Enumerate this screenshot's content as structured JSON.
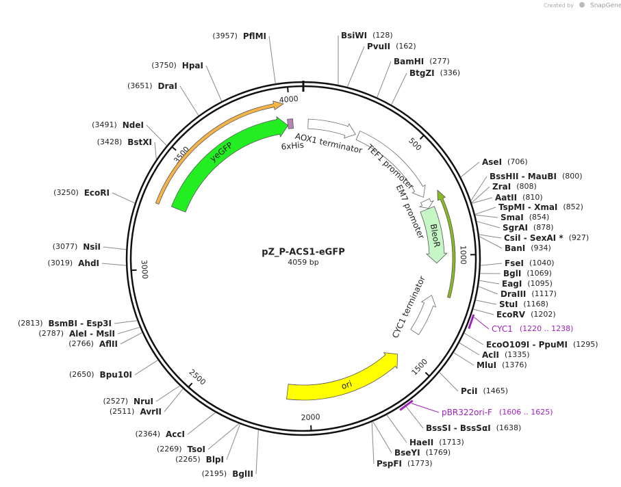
{
  "map": {
    "name": "pZ_P-ACS1-eGFP",
    "length": {
      "value": 4059,
      "label": "4059 bp"
    },
    "ticks": [
      500,
      1000,
      1500,
      2000,
      2500,
      3000,
      3500,
      4000
    ],
    "enzymes": [
      {
        "name": "BsiWI",
        "position": {
          "value": 128,
          "label": "(128)"
        }
      },
      {
        "name": "PvuII",
        "position": {
          "value": 162,
          "label": "(162)"
        }
      },
      {
        "name": "BamHI",
        "position": {
          "value": 277,
          "label": "(277)"
        }
      },
      {
        "name": "BtgZI",
        "position": {
          "value": 336,
          "label": "(336)"
        }
      },
      {
        "name": "AseI",
        "position": {
          "value": 706,
          "label": "(706)"
        }
      },
      {
        "name": "BssHII - MauBI",
        "position": {
          "value": 800,
          "label": "(800)"
        }
      },
      {
        "name": "ZraI",
        "position": {
          "value": 808,
          "label": "(808)"
        }
      },
      {
        "name": "AatII",
        "position": {
          "value": 810,
          "label": "(810)"
        }
      },
      {
        "name": "TspMI - XmaI",
        "position": {
          "value": 852,
          "label": "(852)"
        }
      },
      {
        "name": "SmaI",
        "position": {
          "value": 854,
          "label": "(854)"
        }
      },
      {
        "name": "SgrAI",
        "position": {
          "value": 878,
          "label": "(878)"
        }
      },
      {
        "name": "CsiI - SexAI *",
        "position": {
          "value": 927,
          "label": "(927)"
        }
      },
      {
        "name": "BanI",
        "position": {
          "value": 934,
          "label": "(934)"
        }
      },
      {
        "name": "FseI",
        "position": {
          "value": 1040,
          "label": "(1040)"
        }
      },
      {
        "name": "BglI",
        "position": {
          "value": 1069,
          "label": "(1069)"
        }
      },
      {
        "name": "EagI",
        "position": {
          "value": 1095,
          "label": "(1095)"
        }
      },
      {
        "name": "DraIII",
        "position": {
          "value": 1117,
          "label": "(1117)"
        }
      },
      {
        "name": "StuI",
        "position": {
          "value": 1168,
          "label": "(1168)"
        }
      },
      {
        "name": "EcoRV",
        "position": {
          "value": 1202,
          "label": "(1202)"
        }
      },
      {
        "name": "EcoO109I - PpuMI",
        "position": {
          "value": 1295,
          "label": "(1295)"
        }
      },
      {
        "name": "AclI",
        "position": {
          "value": 1335,
          "label": "(1335)"
        }
      },
      {
        "name": "MluI",
        "position": {
          "value": 1376,
          "label": "(1376)"
        }
      },
      {
        "name": "PciI",
        "position": {
          "value": 1465,
          "label": "(1465)"
        }
      },
      {
        "name": "BssSI - BssSαI",
        "position": {
          "value": 1638,
          "label": "(1638)"
        }
      },
      {
        "name": "HaeII",
        "position": {
          "value": 1713,
          "label": "(1713)"
        }
      },
      {
        "name": "BseYI",
        "position": {
          "value": 1769,
          "label": "(1769)"
        }
      },
      {
        "name": "PspFI",
        "position": {
          "value": 1773,
          "label": "(1773)"
        }
      },
      {
        "name": "BglII",
        "position": {
          "value": 2195,
          "label": "(2195)"
        }
      },
      {
        "name": "BlpI",
        "position": {
          "value": 2265,
          "label": "(2265)"
        }
      },
      {
        "name": "TsoI",
        "position": {
          "value": 2269,
          "label": "(2269)"
        }
      },
      {
        "name": "AccI",
        "position": {
          "value": 2364,
          "label": "(2364)"
        }
      },
      {
        "name": "AvrII",
        "position": {
          "value": 2511,
          "label": "(2511)"
        }
      },
      {
        "name": "NruI",
        "position": {
          "value": 2527,
          "label": "(2527)"
        }
      },
      {
        "name": "Bpu10I",
        "position": {
          "value": 2650,
          "label": "(2650)"
        }
      },
      {
        "name": "AflII",
        "position": {
          "value": 2766,
          "label": "(2766)"
        }
      },
      {
        "name": "AleI - MslI",
        "position": {
          "value": 2787,
          "label": "(2787)"
        }
      },
      {
        "name": "BsmBI - Esp3I",
        "position": {
          "value": 2813,
          "label": "(2813)"
        }
      },
      {
        "name": "AhdI",
        "position": {
          "value": 3019,
          "label": "(3019)"
        }
      },
      {
        "name": "NsiI",
        "position": {
          "value": 3077,
          "label": "(3077)"
        }
      },
      {
        "name": "EcoRI",
        "position": {
          "value": 3250,
          "label": "(3250)"
        }
      },
      {
        "name": "BstXI",
        "position": {
          "value": 3428,
          "label": "(3428)"
        }
      },
      {
        "name": "NdeI",
        "position": {
          "value": 3491,
          "label": "(3491)"
        }
      },
      {
        "name": "DraI",
        "position": {
          "value": 3651,
          "label": "(3651)"
        }
      },
      {
        "name": "HpaI",
        "position": {
          "value": 3750,
          "label": "(3750)"
        }
      },
      {
        "name": "PflMI",
        "position": {
          "value": 3957,
          "label": "(3957)"
        }
      }
    ],
    "features": [
      {
        "start": 3277,
        "end": 3976,
        "direction": 1,
        "color": "#f5b449"
      },
      {
        "name": "yeGFP",
        "start": 3287,
        "end": 3985,
        "direction": 1,
        "color": "#22ee22"
      },
      {
        "name": "6xHis",
        "start": 3985,
        "end": 4010,
        "direction": 0,
        "color": "#b585b5"
      },
      {
        "name": "AOX1 terminator",
        "start": 23,
        "end": 257,
        "direction": 1,
        "color": "#ffffff"
      },
      {
        "name": "TEF1 promoter",
        "start": 270,
        "end": 710,
        "direction": 1,
        "color": "#ffffff"
      },
      {
        "name": "EM7 promoter",
        "start": 728,
        "end": 768,
        "direction": 1,
        "color": "#ffffff"
      },
      {
        "name": "BleoR",
        "start": 770,
        "end": 1037,
        "direction": 1,
        "color": "#c6f5c6"
      },
      {
        "start": 710,
        "end": 1184,
        "direction": -1,
        "color": "#88bb22"
      },
      {
        "name": "CYC1 terminator",
        "start": 1195,
        "end": 1392,
        "direction": -1,
        "color": "#ffffff"
      },
      {
        "name": "ori",
        "start": 1527,
        "end": 2106,
        "direction": -1,
        "color": "#ffff00"
      }
    ],
    "primer_sites": [
      {
        "name": "CYC1",
        "range": "(1220 .. 1238)",
        "start": 1220,
        "end": 1238
      },
      {
        "name": "pBR322ori-F",
        "range": "(1606 .. 1625)",
        "start": 1606,
        "end": 1625
      }
    ]
  },
  "credit": {
    "prefix": "Created by",
    "brand": "SnapGene"
  }
}
